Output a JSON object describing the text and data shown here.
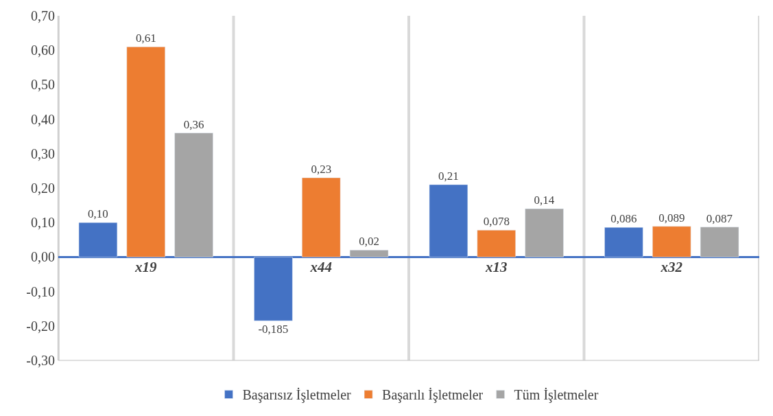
{
  "chart_data": {
    "type": "bar",
    "categories": [
      "x19",
      "x44",
      "x13",
      "x32"
    ],
    "series": [
      {
        "name": "Başarısız İşletmeler",
        "color": "#4472c4",
        "values": [
          0.1,
          -0.185,
          0.21,
          0.086
        ],
        "value_labels": [
          "0,10",
          "-0,185",
          "0,21",
          "0,086"
        ]
      },
      {
        "name": "Başarılı İşletmeler",
        "color": "#ed7d31",
        "values": [
          0.61,
          0.23,
          0.078,
          0.089
        ],
        "value_labels": [
          "0,61",
          "0,23",
          "0,078",
          "0,089"
        ]
      },
      {
        "name": "Tüm İşletmeler",
        "color": "#a5a5a5",
        "values": [
          0.36,
          0.02,
          0.14,
          0.087
        ],
        "value_labels": [
          "0,36",
          "0,02",
          "0,14",
          "0,087"
        ]
      }
    ],
    "ylim": [
      -0.3,
      0.7
    ],
    "yticks": [
      {
        "value": -0.3,
        "label": "-0,30"
      },
      {
        "value": -0.2,
        "label": "-0,20"
      },
      {
        "value": -0.1,
        "label": "-0,10"
      },
      {
        "value": 0,
        "label": "0,00"
      },
      {
        "value": 0.1,
        "label": "0,10"
      },
      {
        "value": 0.2,
        "label": "0,20"
      },
      {
        "value": 0.3,
        "label": "0,30"
      },
      {
        "value": 0.4,
        "label": "0,40"
      },
      {
        "value": 0.5,
        "label": "0,50"
      },
      {
        "value": 0.6,
        "label": "0,60"
      },
      {
        "value": 0.7,
        "label": "0,70"
      }
    ],
    "grid": "x",
    "legend": "bottom"
  }
}
